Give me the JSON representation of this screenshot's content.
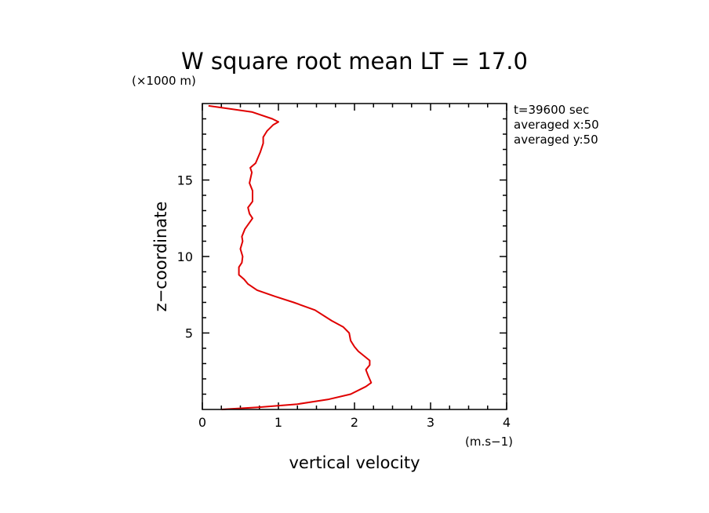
{
  "chart_data": {
    "type": "line",
    "title": "W square root mean LT = 17.0",
    "xlabel": "vertical velocity",
    "ylabel": "z−coordinate",
    "x_unit": "(m.s−1)",
    "y_unit": "(×1000 m)",
    "xlim": [
      0,
      4
    ],
    "ylim": [
      0,
      20
    ],
    "x_ticks": [
      "0",
      "1",
      "2",
      "3",
      "4"
    ],
    "y_ticks": [
      "5",
      "10",
      "15"
    ],
    "info": [
      "t=39600 sec",
      "averaged  x:50",
      "averaged  y:50"
    ],
    "line_color": "#e00000",
    "series": [
      {
        "x": [
          0.25,
          0.75,
          1.25,
          1.65,
          1.95,
          2.15,
          2.22,
          2.18,
          2.15,
          2.2,
          2.2,
          2.05,
          2.0,
          1.95,
          1.93,
          1.85,
          1.7,
          1.48,
          1.2,
          0.95,
          0.72,
          0.6,
          0.55,
          0.48,
          0.48,
          0.52,
          0.53,
          0.5,
          0.53,
          0.52,
          0.56,
          0.66,
          0.62,
          0.6,
          0.66,
          0.66,
          0.62,
          0.65,
          0.63,
          0.7,
          0.76,
          0.8,
          0.8,
          0.85,
          0.93,
          1.0,
          0.92,
          0.65,
          0.3,
          0.08
        ],
        "y": [
          0.0,
          0.15,
          0.35,
          0.65,
          1.0,
          1.5,
          1.75,
          2.2,
          2.6,
          2.9,
          3.2,
          3.8,
          4.1,
          4.5,
          5.0,
          5.4,
          5.8,
          6.5,
          7.0,
          7.4,
          7.8,
          8.2,
          8.5,
          8.8,
          9.3,
          9.6,
          10.0,
          10.5,
          11.0,
          11.3,
          11.8,
          12.5,
          12.8,
          13.2,
          13.6,
          14.3,
          14.8,
          15.5,
          15.8,
          16.1,
          16.8,
          17.4,
          17.8,
          18.2,
          18.6,
          18.8,
          19.0,
          19.45,
          19.7,
          19.85
        ]
      }
    ]
  }
}
